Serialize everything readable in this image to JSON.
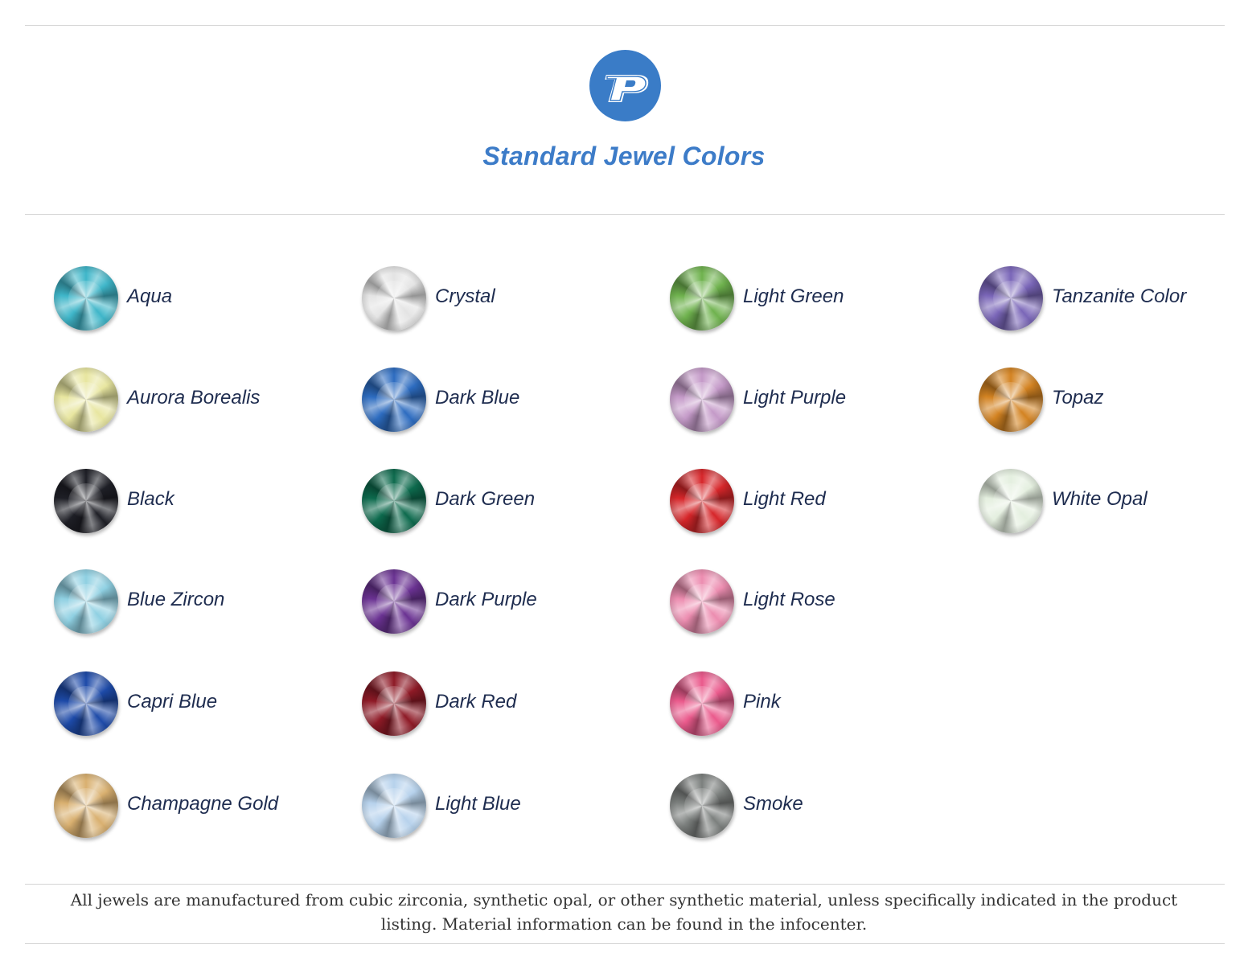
{
  "header": {
    "logo_letter": "P",
    "logo_color": "#3a7cc7",
    "title": "Standard Jewel Colors",
    "title_color": "#3d7cc8"
  },
  "columns": [
    [
      {
        "label": "Aqua",
        "color": "#3fb6c9"
      },
      {
        "label": "Aurora Borealis",
        "color": "#e8e6a0"
      },
      {
        "label": "Black",
        "color": "#1e1f26"
      },
      {
        "label": "Blue Zircon",
        "color": "#8fd0e2"
      },
      {
        "label": "Capri Blue",
        "color": "#1d4aa8"
      },
      {
        "label": "Champagne Gold",
        "color": "#d9b070"
      }
    ],
    [
      {
        "label": "Crystal",
        "color": "#e4e4e4"
      },
      {
        "label": "Dark Blue",
        "color": "#2d6cc0"
      },
      {
        "label": "Dark Green",
        "color": "#0d6a4d"
      },
      {
        "label": "Dark Purple",
        "color": "#6a3292"
      },
      {
        "label": "Dark Red",
        "color": "#8e1a26"
      },
      {
        "label": "Light Blue",
        "color": "#b7d2ec"
      }
    ],
    [
      {
        "label": "Light Green",
        "color": "#6fb24e"
      },
      {
        "label": "Light Purple",
        "color": "#c49ac8"
      },
      {
        "label": "Light Red",
        "color": "#d6262a"
      },
      {
        "label": "Light Rose",
        "color": "#ec8db0"
      },
      {
        "label": "Pink",
        "color": "#ea5a8c"
      },
      {
        "label": "Smoke",
        "color": "#7c807e"
      }
    ],
    [
      {
        "label": "Tanzanite Color",
        "color": "#7a66b8"
      },
      {
        "label": "Topaz",
        "color": "#d38322"
      },
      {
        "label": "White Opal",
        "color": "#e4efdf"
      }
    ]
  ],
  "footer": {
    "text": "All jewels are manufactured from cubic zirconia, synthetic opal, or other synthetic material, unless specifically indicated in the product listing. Material information can be found in the infocenter."
  }
}
